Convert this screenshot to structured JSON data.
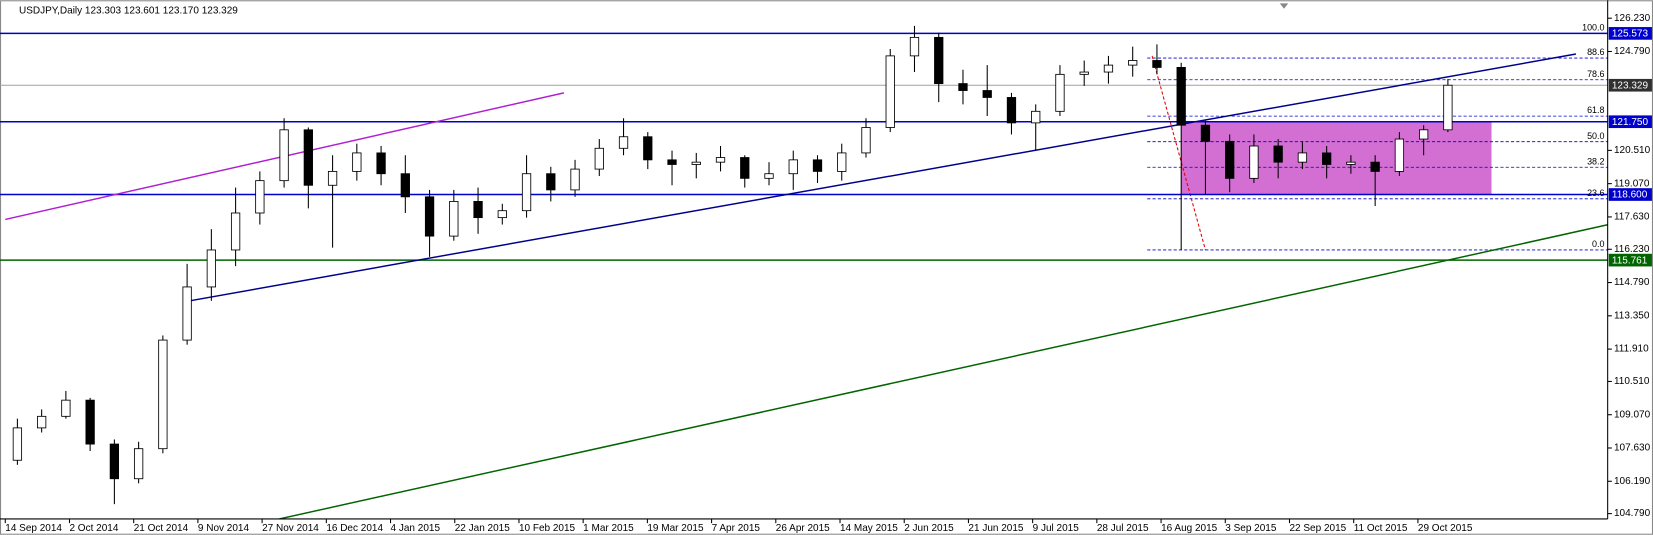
{
  "chart_data": {
    "type": "candlestick",
    "title": "USDJPY,Daily  123.303 123.601 123.170 123.329",
    "open": [
      107.1,
      108.5,
      109.0,
      109.7,
      107.8,
      106.3,
      107.6,
      112.3,
      114.6,
      116.2,
      117.8,
      119.2,
      121.4,
      119.0,
      119.6,
      120.4,
      119.5,
      118.5,
      116.8,
      118.3,
      117.6,
      117.9,
      119.5,
      118.8,
      119.7,
      120.6,
      121.1,
      120.1,
      119.9,
      120.0,
      120.2,
      119.3,
      119.5,
      120.1,
      119.6,
      120.4,
      121.5,
      124.6,
      125.4,
      123.4,
      123.1,
      122.8,
      121.7,
      122.2,
      123.8,
      123.9,
      124.2,
      124.4,
      124.1,
      121.6,
      120.9,
      119.3,
      120.7,
      120.0,
      120.4,
      119.9,
      120.0,
      119.6,
      121.0,
      121.4
    ],
    "high": [
      108.9,
      109.3,
      110.1,
      109.8,
      108.0,
      107.9,
      112.5,
      115.6,
      117.1,
      118.9,
      119.6,
      121.9,
      121.5,
      120.3,
      120.8,
      120.7,
      120.3,
      118.8,
      118.8,
      118.9,
      118.2,
      120.3,
      119.8,
      120.1,
      121.0,
      121.9,
      121.3,
      120.5,
      120.4,
      120.7,
      120.3,
      120.0,
      120.5,
      120.3,
      120.8,
      121.9,
      124.9,
      125.9,
      125.6,
      124.0,
      124.2,
      123.0,
      122.5,
      124.2,
      124.4,
      124.6,
      125.0,
      125.1,
      124.3,
      121.8,
      121.2,
      121.2,
      121.0,
      120.9,
      120.7,
      120.3,
      120.3,
      121.3,
      121.6,
      123.601
    ],
    "low": [
      106.9,
      108.3,
      108.9,
      107.5,
      105.2,
      106.1,
      107.4,
      112.1,
      114.0,
      115.5,
      117.3,
      118.9,
      118.0,
      116.3,
      119.2,
      119.0,
      117.8,
      115.9,
      116.6,
      116.9,
      117.3,
      117.6,
      118.3,
      118.5,
      119.4,
      120.3,
      119.7,
      119.0,
      119.3,
      119.6,
      118.9,
      119.0,
      118.8,
      119.1,
      119.2,
      120.2,
      121.3,
      123.9,
      122.6,
      122.5,
      122.0,
      121.2,
      120.5,
      122.0,
      123.3,
      123.4,
      123.7,
      123.8,
      116.2,
      118.6,
      118.7,
      119.1,
      119.3,
      119.7,
      119.3,
      119.5,
      118.1,
      119.4,
      120.3,
      121.3
    ],
    "close": [
      108.5,
      109.0,
      109.7,
      107.8,
      106.3,
      107.6,
      112.3,
      114.6,
      116.2,
      117.8,
      119.2,
      121.4,
      119.0,
      119.6,
      120.4,
      119.5,
      118.5,
      116.8,
      118.3,
      117.6,
      117.9,
      119.5,
      118.8,
      119.7,
      120.6,
      121.1,
      120.1,
      119.9,
      120.0,
      120.2,
      119.3,
      119.5,
      120.1,
      119.6,
      120.4,
      121.5,
      124.6,
      125.4,
      123.4,
      123.1,
      122.8,
      121.7,
      122.2,
      123.8,
      123.9,
      124.2,
      124.4,
      124.1,
      121.6,
      120.9,
      119.3,
      120.7,
      120.0,
      120.4,
      119.9,
      120.0,
      119.6,
      121.0,
      121.4,
      123.329
    ],
    "xlim": [
      0,
      66.09
    ],
    "ylim": [
      104.56,
      126.87
    ],
    "yticks": [
      {
        "value": 126.23,
        "label": "126.230"
      },
      {
        "value": 124.79,
        "label": "124.790"
      },
      {
        "value": 120.51,
        "label": "120.510"
      },
      {
        "value": 119.07,
        "label": "119.070"
      },
      {
        "value": 117.63,
        "label": "117.630"
      },
      {
        "value": 116.23,
        "label": "116.230"
      },
      {
        "value": 114.79,
        "label": "114.790"
      },
      {
        "value": 113.35,
        "label": "113.350"
      },
      {
        "value": 111.91,
        "label": "111.910"
      },
      {
        "value": 110.51,
        "label": "110.510"
      },
      {
        "value": 109.07,
        "label": "109.070"
      },
      {
        "value": 107.63,
        "label": "107.630"
      },
      {
        "value": 106.19,
        "label": "106.190"
      },
      {
        "value": 104.79,
        "label": "104.790"
      }
    ],
    "x_labels": [
      "14 Sep 2014",
      "2 Oct 2014",
      "21 Oct 2014",
      "9 Nov 2014",
      "27 Nov 2014",
      "16 Dec 2014",
      "4 Jan 2015",
      "22 Jan 2015",
      "10 Feb 2015",
      "1 Mar 2015",
      "19 Mar 2015",
      "7 Apr 2015",
      "26 Apr 2015",
      "14 May 2015",
      "2 Jun 2015",
      "21 Jun 2015",
      "9 Jul 2015",
      "28 Jul 2015",
      "16 Aug 2015",
      "3 Sep 2015",
      "22 Sep 2015",
      "11 Oct 2015",
      "29 Oct 2015"
    ],
    "rect": {
      "x": [
        48.5,
        61.3
      ],
      "y": [
        121.75,
        118.6
      ],
      "color": "#d36fd3"
    },
    "levels": [
      {
        "value": 125.573,
        "color": "#0000cc",
        "box": "#0000cc"
      },
      {
        "value": 121.75,
        "label": "121.750",
        "color": "#0000cc",
        "box": "#0000cc"
      },
      {
        "value": 118.6,
        "label": "118.600",
        "color": "#0000cc",
        "box": "#0000cc"
      },
      {
        "value": 115.761,
        "color": "#006400",
        "box": "#006400"
      },
      {
        "value": 123.329,
        "color": "#a0a0a0",
        "box": "#303030"
      }
    ],
    "fib": {
      "from": 116.2,
      "to": 125.573,
      "x0": 47.1,
      "color": "#0000cc",
      "levels": [
        {
          "value": 100,
          "label": "100.0"
        },
        {
          "value": 88.6,
          "label": "88.6"
        },
        {
          "value": 78.6,
          "label": "78.6"
        },
        {
          "value": 61.8,
          "label": "61.8"
        },
        {
          "value": 50,
          "label": "50.0"
        },
        {
          "value": 38.2,
          "label": "38.2"
        },
        {
          "value": 23.6,
          "label": "23.6"
        },
        {
          "value": 0,
          "label": "0.0"
        }
      ],
      "anchor": {
        "x": [
          47.3,
          49.5
        ],
        "y": [
          124.6,
          116.2
        ],
        "color": "#e00000"
      }
    },
    "trendlines": [
      {
        "x": [
          0,
          23.04
        ],
        "y": [
          117.52,
          123.0
        ],
        "color": "#b020d0"
      },
      {
        "x": [
          7.61,
          64.78
        ],
        "y": [
          114.0,
          124.68
        ],
        "color": "#00008b"
      },
      {
        "x": [
          11.3,
          66.09
        ],
        "y": [
          104.56,
          117.29
        ],
        "color": "#006400"
      }
    ]
  }
}
